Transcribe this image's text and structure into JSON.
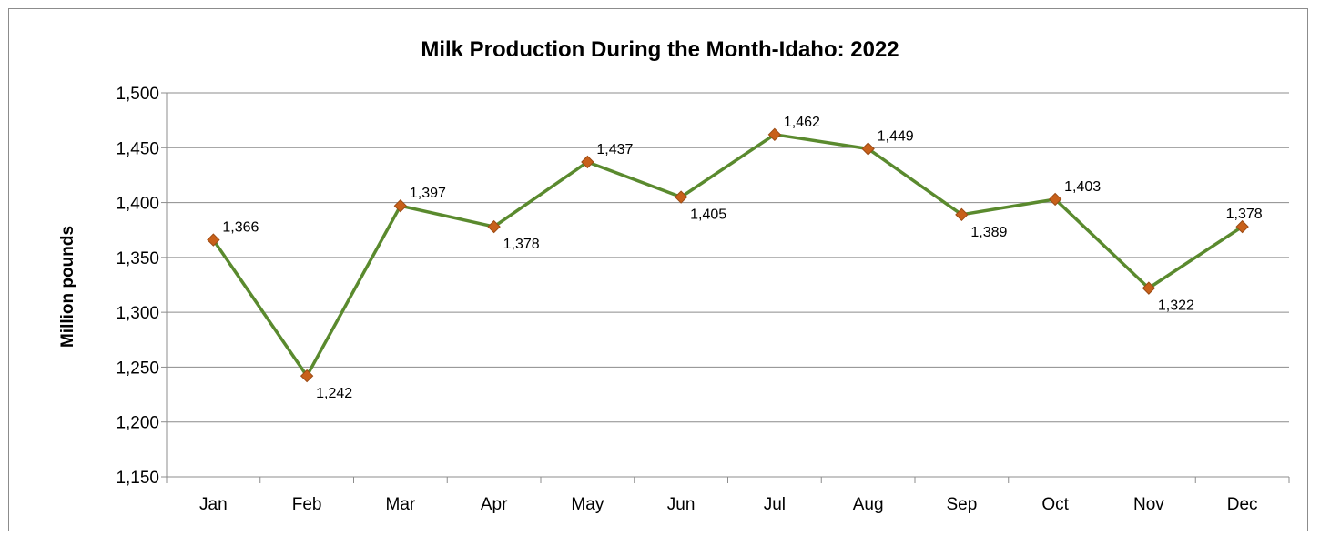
{
  "chart_data": {
    "type": "line",
    "title": "Milk Production During the Month-Idaho: 2022",
    "xlabel": "",
    "ylabel": "Million pounds",
    "categories": [
      "Jan",
      "Feb",
      "Mar",
      "Apr",
      "May",
      "Jun",
      "Jul",
      "Aug",
      "Sep",
      "Oct",
      "Nov",
      "Dec"
    ],
    "values": [
      1366,
      1242,
      1397,
      1378,
      1437,
      1405,
      1462,
      1449,
      1389,
      1403,
      1322,
      1378
    ],
    "data_labels": [
      "1,366",
      "1,242",
      "1,397",
      "1,378",
      "1,437",
      "1,405",
      "1,462",
      "1,449",
      "1,389",
      "1,403",
      "1,322",
      "1,378"
    ],
    "ylim": [
      1150,
      1500
    ],
    "yticks": [
      1150,
      1200,
      1250,
      1300,
      1350,
      1400,
      1450,
      1500
    ],
    "ytick_labels": [
      "1,150",
      "1,200",
      "1,250",
      "1,300",
      "1,350",
      "1,400",
      "1,450",
      "1,500"
    ],
    "grid": true,
    "line_color": "#5a8a2e",
    "marker_color": "#c8601a",
    "marker": "diamond"
  }
}
